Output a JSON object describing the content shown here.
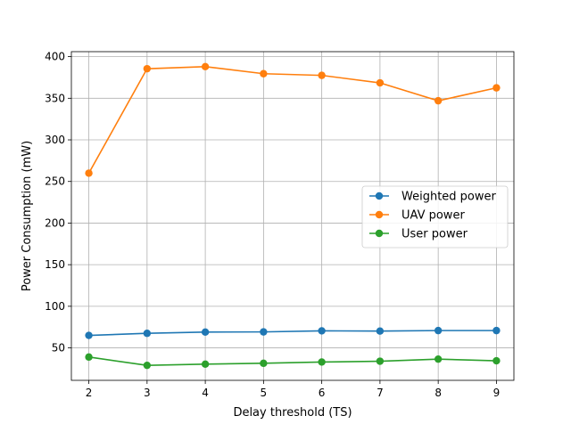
{
  "chart_data": {
    "type": "line",
    "title": "",
    "xlabel": "Delay threshold (TS)",
    "ylabel": "Power Consumption (mW)",
    "x": [
      2,
      3,
      4,
      5,
      6,
      7,
      8,
      9
    ],
    "xlim": [
      1.7,
      9.3
    ],
    "ylim": [
      11,
      406
    ],
    "xticks": [
      2,
      3,
      4,
      5,
      6,
      7,
      8,
      9
    ],
    "yticks": [
      50,
      100,
      150,
      200,
      250,
      300,
      350,
      400
    ],
    "grid": true,
    "legend_position": "center-right",
    "series": [
      {
        "name": "Weighted power",
        "color": "#1f77b4",
        "marker": "circle",
        "values": [
          65,
          67.5,
          69,
          69.2,
          70.5,
          70.2,
          70.8,
          70.8
        ]
      },
      {
        "name": "UAV power",
        "color": "#ff7f0e",
        "marker": "circle",
        "values": [
          260,
          385.5,
          388,
          379.5,
          377.5,
          368.5,
          347,
          362.5
        ]
      },
      {
        "name": "User power",
        "color": "#2ca02c",
        "marker": "circle",
        "values": [
          39,
          29,
          30.5,
          31.5,
          33,
          34,
          36.5,
          34.5
        ]
      }
    ]
  }
}
